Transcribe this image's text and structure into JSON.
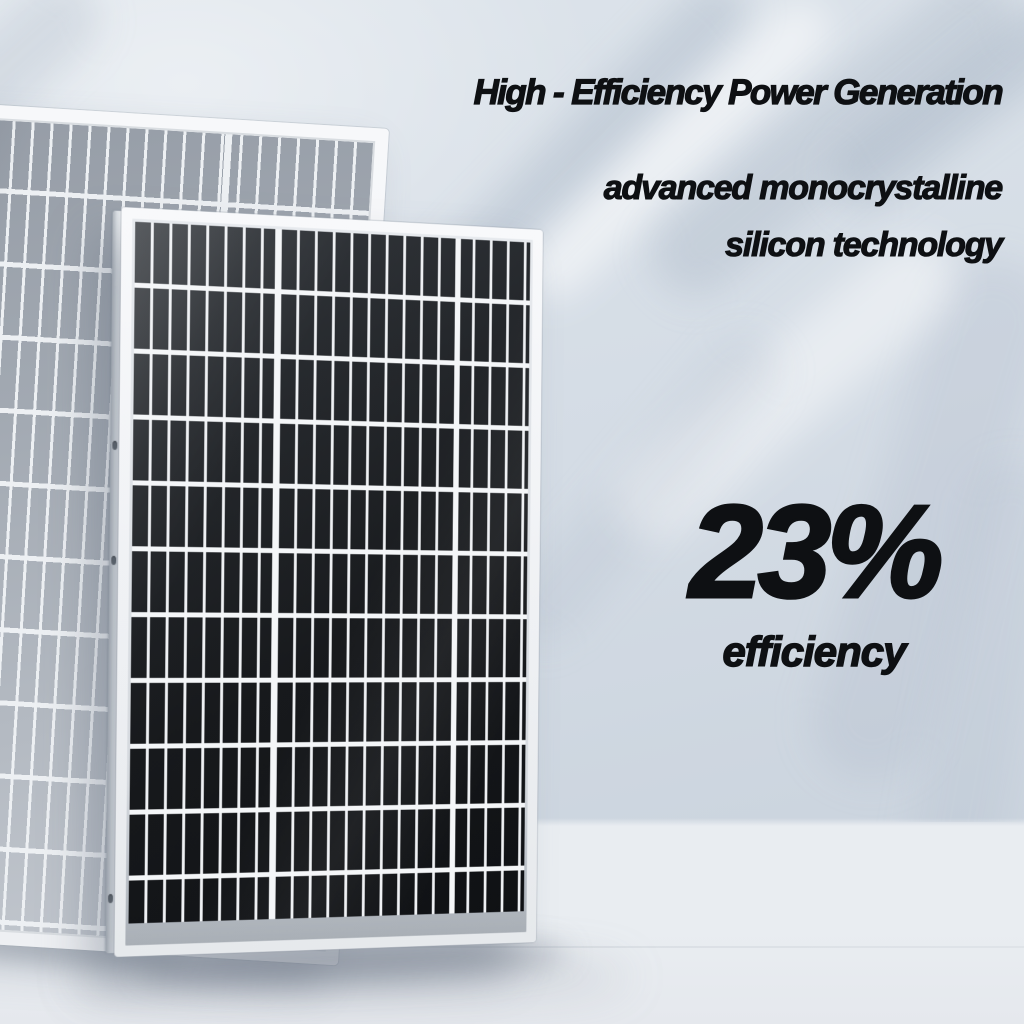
{
  "headline": {
    "text": "High - Efficiency Power Generation"
  },
  "subheadline": {
    "line1": "advanced monocrystalline",
    "line2": "silicon technology"
  },
  "stat": {
    "value": "23%",
    "label": "efficiency"
  },
  "scene": {
    "front_panel": {
      "name": "monocrystalline-solar-panel",
      "cell_color": "#17191c",
      "grid_color": "#f4f6f8",
      "frame_color": "#eff1f3",
      "mounting_holes": 3
    },
    "back_panel": {
      "name": "polycrystalline-solar-panel",
      "cell_color": "#a9afb8",
      "grid_color": "#edf0f3",
      "frame_color": "#f3f5f7"
    }
  },
  "colors": {
    "text": "#0e1013",
    "wall": "#cfd8e2",
    "floor": "#e9edf1",
    "leaf_shadow": "#9eacbe"
  }
}
